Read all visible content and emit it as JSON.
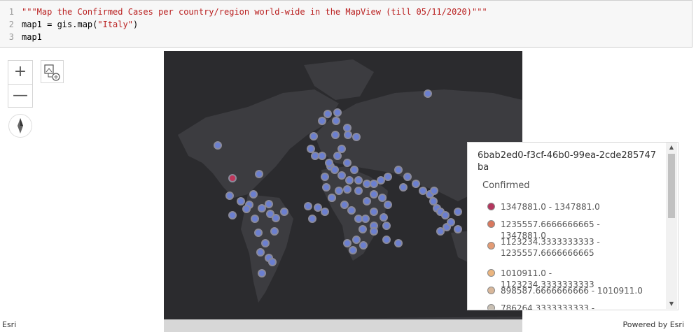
{
  "code_cell": {
    "lines": [
      {
        "number": "1",
        "text": "\"\"\"Map the Confirmed Cases per country/region world-wide in the MapView (till 05/11/2020)\"\"\""
      },
      {
        "number": "2",
        "text_prefix": "map1 = gis.map(",
        "text_string": "\"Italy\"",
        "text_suffix": ")"
      },
      {
        "number": "3",
        "text": "map1"
      }
    ]
  },
  "map": {
    "background_color": "#2b2b2e",
    "land_color": "#3c3c40",
    "marker_fill": "#6b7fd0",
    "marker_stroke": "#8a8a9a",
    "highlight_fill": "#c0365a"
  },
  "controls": {
    "zoom_in": "+",
    "zoom_out": "—"
  },
  "attribution": {
    "left": "Esri",
    "right": "Powered by Esri"
  },
  "legend": {
    "layer_title": "6bab2ed0-f3cf-46b0-99ea-2cde285747ba",
    "field": "Confirmed",
    "items": [
      {
        "label": "1347881.0 - 1347881.0",
        "color": "#b4365e"
      },
      {
        "label": "1235557.6666666665 - 1347881.0",
        "color": "#d9785e"
      },
      {
        "label": "1123234.3333333333 - 1235557.6666666665",
        "color": "#e39b74"
      },
      {
        "label": "1010911.0 - 1123234.3333333333",
        "color": "#ebb57f"
      },
      {
        "label": "898587.6666666666 - 1010911.0",
        "color": "#d8b79a"
      },
      {
        "label": "786264.3333333333 -",
        "color": "#c9c0b4"
      }
    ]
  }
}
